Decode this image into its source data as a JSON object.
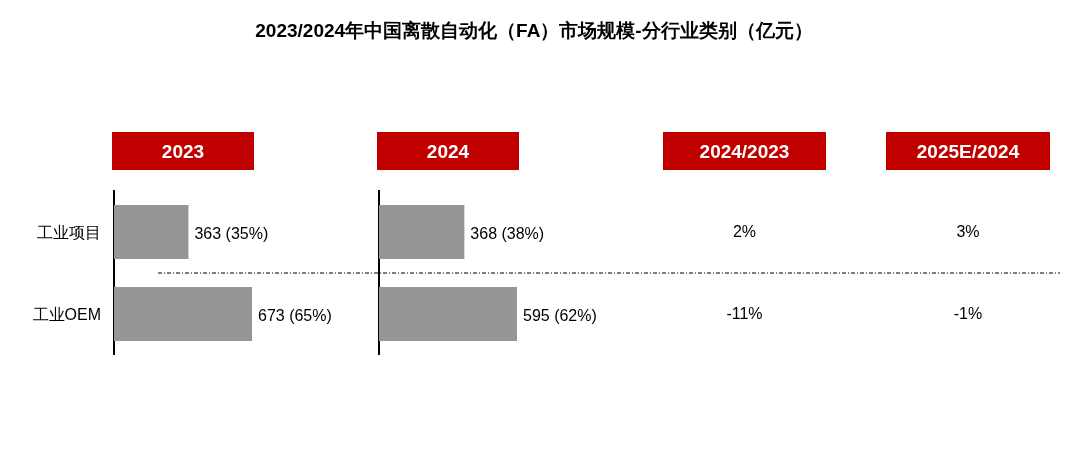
{
  "chart_data": [
    {
      "type": "bar",
      "orientation": "horizontal",
      "title": "2023/2024年中国离散自动化（FA）市场规模-分行业类别（亿元）",
      "subtitle": "2023",
      "categories": [
        "工业项目",
        "工业OEM"
      ],
      "values": [
        363,
        673
      ],
      "value_labels": [
        "363 (35%)",
        "673 (65%)"
      ],
      "color": "#969696",
      "tick_labels": "y"
    },
    {
      "type": "bar",
      "orientation": "horizontal",
      "subtitle": "2024",
      "values": [
        368,
        595
      ],
      "value_labels": [
        "368 (38%)",
        "595 (62%)"
      ],
      "color": "#969696",
      "tick_labels": false
    },
    {
      "type": "other",
      "subtitle": "2024/2023",
      "annotations": [
        "2%",
        "-11%"
      ]
    },
    {
      "type": "other",
      "subtitle": "2025E/2024",
      "annotations": [
        "3%",
        "-1%"
      ]
    }
  ]
}
